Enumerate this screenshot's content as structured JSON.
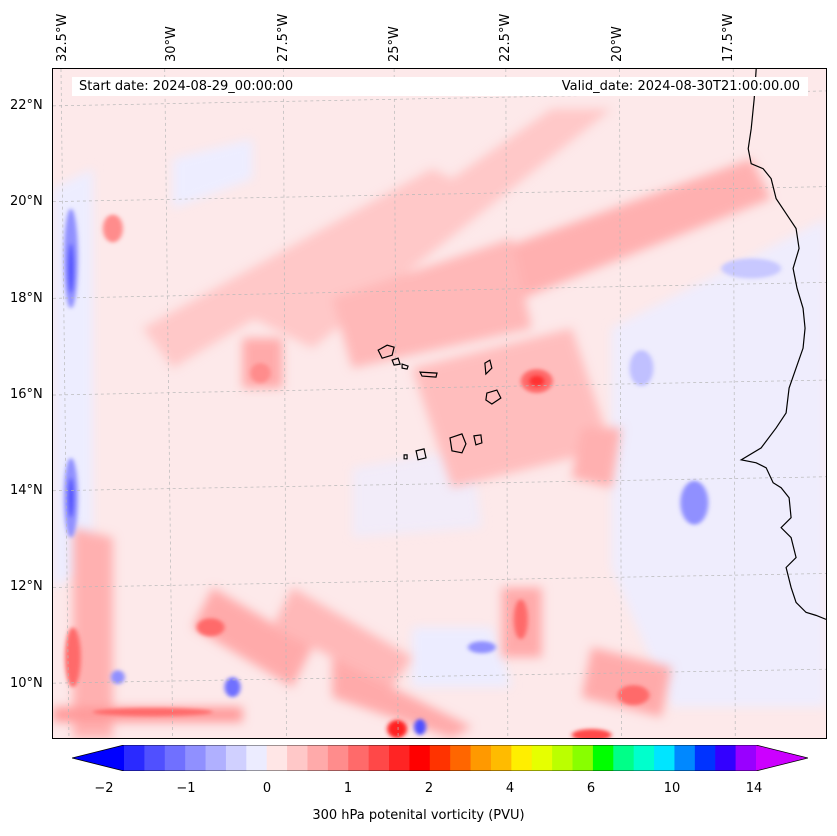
{
  "map": {
    "longitude_labels": [
      "32.5°W",
      "30°W",
      "27.5°W",
      "25°W",
      "22.5°W",
      "20°W",
      "17.5°W"
    ],
    "latitude_labels": [
      "22°N",
      "20°N",
      "18°N",
      "16°N",
      "14°N",
      "12°N",
      "10°N"
    ],
    "start_date": "Start date: 2024-08-29_00:00:00",
    "valid_date": "Valid_date: 2024-08-30T21:00:00.00",
    "variable": "300 hPa potenital vorticity (PVU)",
    "gridlines": "dashed grey",
    "coastline_color": "#000000"
  },
  "colorbar": {
    "ticks": [
      "−2",
      "−1",
      "0",
      "1",
      "2",
      "4",
      "6",
      "10",
      "14"
    ],
    "extend": "both",
    "colors": [
      "#0000ff",
      "#2a2aff",
      "#5050ff",
      "#7070ff",
      "#9090ff",
      "#b0b0ff",
      "#d0d0ff",
      "#ececff",
      "#ffe6e6",
      "#ffc8c8",
      "#ffaaaa",
      "#ff8c8c",
      "#ff6a6a",
      "#ff4848",
      "#ff2424",
      "#ff0000",
      "#ff3300",
      "#ff6600",
      "#ff9900",
      "#ffbb00",
      "#ffee00",
      "#e6ff00",
      "#bbff00",
      "#88ff00",
      "#00ff00",
      "#00ff88",
      "#00ffcc",
      "#00e5ff",
      "#0088ff",
      "#0033ff",
      "#3300ff",
      "#9900ff",
      "#cc00ff"
    ]
  }
}
